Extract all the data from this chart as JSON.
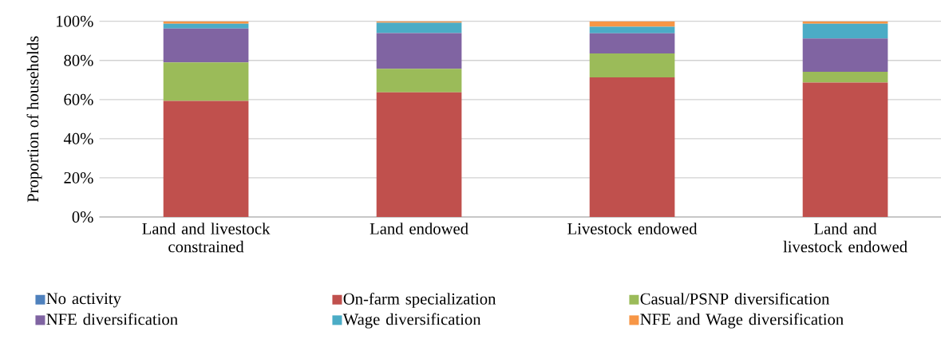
{
  "chart_data": {
    "type": "bar",
    "stacked": true,
    "ylabel": "Proportion of households",
    "categories": [
      "Land and livestock constrained",
      "Land endowed",
      "Livestock endowed",
      "Land and livestock endowed"
    ],
    "series": [
      {
        "name": "No activity",
        "color": "#4f81bd",
        "values": [
          0,
          0,
          0,
          0
        ]
      },
      {
        "name": "On-farm specialization",
        "color": "#c0504d",
        "values": [
          59.3,
          63.7,
          71.3,
          68.7
        ]
      },
      {
        "name": "Casual/PSNP diversification",
        "color": "#9bbb59",
        "values": [
          19.7,
          12.0,
          12.3,
          5.5
        ]
      },
      {
        "name": "NFE diversification",
        "color": "#8064a2",
        "values": [
          17.3,
          18.3,
          10.2,
          17.0
        ]
      },
      {
        "name": "Wage diversification",
        "color": "#4bacc6",
        "values": [
          2.4,
          5.3,
          3.4,
          7.5
        ]
      },
      {
        "name": "NFE and Wage diversification",
        "color": "#f79646",
        "values": [
          1.3,
          0.7,
          2.8,
          1.3
        ]
      }
    ],
    "ylim": [
      0,
      100
    ],
    "yticks": [
      {
        "value": 0,
        "label": "0%"
      },
      {
        "value": 20,
        "label": "20%"
      },
      {
        "value": 40,
        "label": "40%"
      },
      {
        "value": 60,
        "label": "60%"
      },
      {
        "value": 80,
        "label": "80%"
      },
      {
        "value": 100,
        "label": "100%"
      }
    ],
    "grid": "y",
    "legend": "bottom"
  }
}
